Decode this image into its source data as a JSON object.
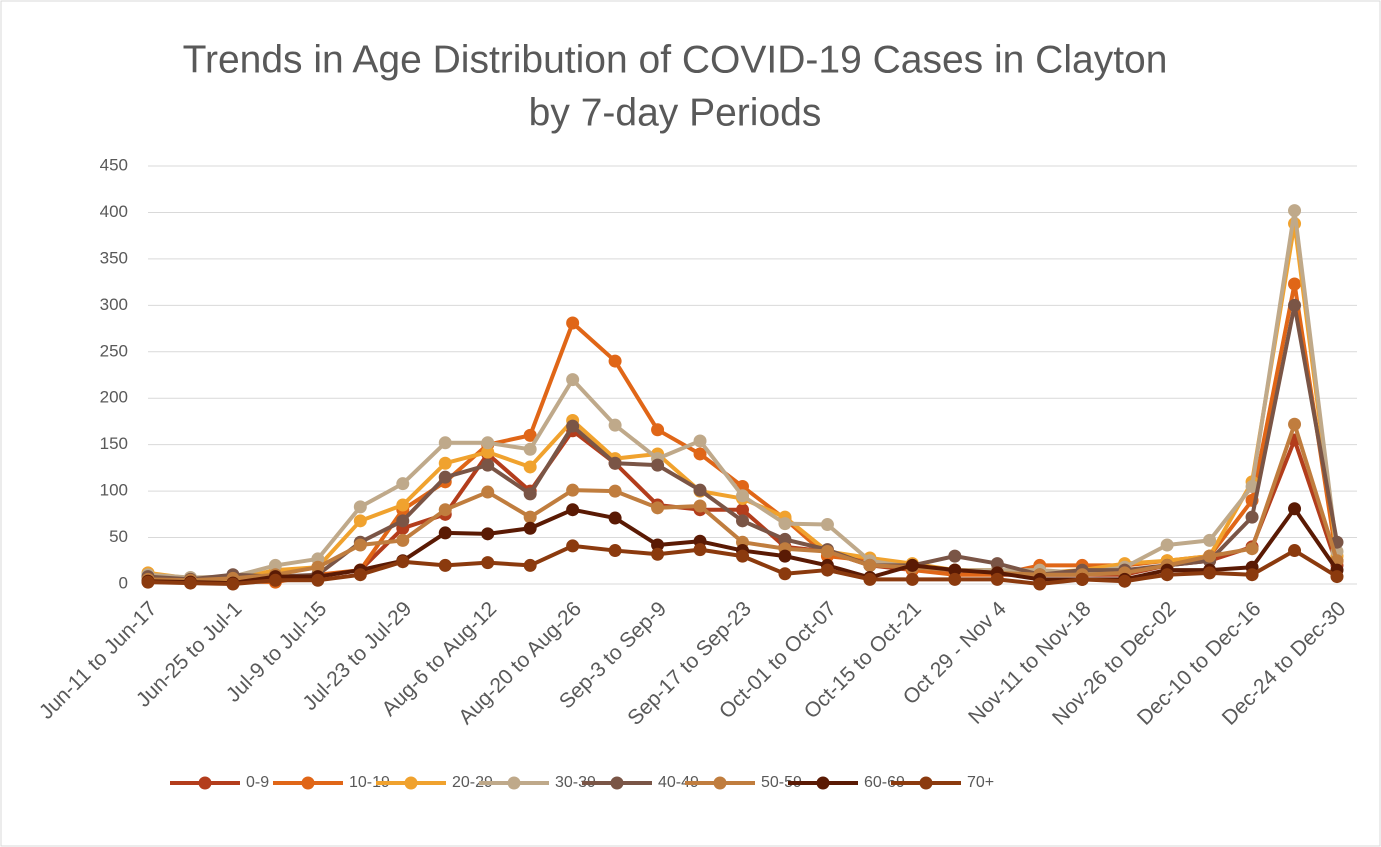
{
  "chart_data": {
    "type": "line",
    "title": [
      "Trends in Age Distribution of COVID-19 Cases in Clayton",
      "by 7-day Periods"
    ],
    "categories": [
      "Jun-11 to Jun-17",
      null,
      "Jun-25 to Jul-1",
      null,
      "Jul-9 to Jul-15",
      null,
      "Jul-23 to Jul-29",
      null,
      "Aug-6 to Aug-12",
      null,
      "Aug-20 to Aug-26",
      null,
      "Sep-3 to Sep-9",
      null,
      "Sep-17 to Sep-23",
      null,
      "Oct-01 to Oct-07",
      null,
      "Oct-15 to Oct-21",
      null,
      "Oct 29 - Nov 4",
      null,
      "Nov-11  to Nov-18",
      null,
      "Nov-26 to Dec-02",
      null,
      "Dec-10 to Dec-16",
      null,
      "Dec-24 to Dec-30"
    ],
    "series": [
      {
        "name": "0-9",
        "color": "#b33d1c",
        "values": [
          10,
          5,
          5,
          5,
          8,
          15,
          60,
          75,
          140,
          100,
          165,
          130,
          85,
          80,
          80,
          40,
          35,
          20,
          15,
          15,
          10,
          10,
          10,
          10,
          20,
          25,
          40,
          155,
          20
        ]
      },
      {
        "name": "10-19",
        "color": "#e06617",
        "values": [
          8,
          5,
          3,
          2,
          10,
          15,
          80,
          110,
          150,
          160,
          281,
          240,
          166,
          140,
          105,
          70,
          30,
          25,
          15,
          10,
          10,
          20,
          20,
          20,
          25,
          30,
          90,
          323,
          25
        ]
      },
      {
        "name": "20-29",
        "color": "#f0a22e",
        "values": [
          12,
          6,
          5,
          15,
          18,
          68,
          85,
          130,
          142,
          126,
          176,
          135,
          140,
          100,
          92,
          72,
          35,
          28,
          22,
          15,
          15,
          12,
          15,
          22,
          25,
          30,
          110,
          388,
          30
        ]
      },
      {
        "name": "30-39",
        "color": "#bfa98a",
        "values": [
          10,
          7,
          8,
          20,
          27,
          83,
          108,
          152,
          152,
          145,
          220,
          171,
          135,
          154,
          95,
          65,
          64,
          25,
          18,
          15,
          15,
          15,
          12,
          18,
          42,
          47,
          105,
          402,
          35
        ]
      },
      {
        "name": "40-49",
        "color": "#7a5546",
        "values": [
          8,
          5,
          10,
          8,
          10,
          45,
          68,
          115,
          128,
          97,
          170,
          130,
          128,
          101,
          68,
          48,
          37,
          20,
          20,
          30,
          22,
          10,
          15,
          15,
          20,
          25,
          72,
          300,
          45
        ]
      },
      {
        "name": "50-59",
        "color": "#c07d3e",
        "values": [
          5,
          4,
          6,
          10,
          18,
          42,
          47,
          80,
          99,
          72,
          101,
          100,
          82,
          84,
          45,
          38,
          35,
          20,
          18,
          15,
          12,
          10,
          10,
          12,
          20,
          30,
          38,
          172,
          25
        ]
      },
      {
        "name": "60-69",
        "color": "#5a1a04",
        "values": [
          3,
          2,
          1,
          8,
          8,
          15,
          25,
          55,
          54,
          60,
          80,
          71,
          42,
          46,
          36,
          30,
          20,
          7,
          20,
          15,
          12,
          5,
          5,
          5,
          15,
          15,
          18,
          81,
          15
        ]
      },
      {
        "name": "70+",
        "color": "#8b3a0e",
        "values": [
          2,
          1,
          0,
          4,
          4,
          10,
          24,
          20,
          23,
          20,
          41,
          36,
          32,
          37,
          30,
          11,
          15,
          5,
          5,
          5,
          5,
          0,
          5,
          3,
          10,
          12,
          10,
          36,
          8
        ]
      }
    ],
    "ylim": [
      0,
      450
    ],
    "yticks": [
      0,
      50,
      100,
      150,
      200,
      250,
      300,
      350,
      400,
      450
    ],
    "grid": true,
    "legend": "bottom"
  }
}
